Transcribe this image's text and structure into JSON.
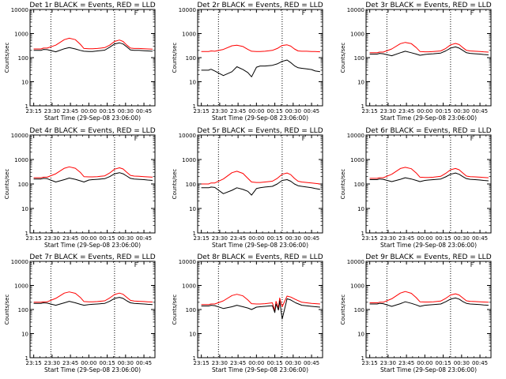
{
  "chart_data": [
    {
      "type": "line",
      "title": "Det 1r BLACK = Events, RED = LLD",
      "ylabel": "Counts/sec",
      "xlabel": "Start Time (29-Sep-08 23:06:00)",
      "ylim": [
        1,
        10000
      ],
      "yscale": "log",
      "x_ticks": [
        "23:15",
        "23:30",
        "23:45",
        "00:00",
        "00:15",
        "00:30",
        "00:45"
      ],
      "y_ticks": [
        "1",
        "10",
        "100",
        "1000",
        "10000"
      ],
      "flag": "F",
      "x_minutes": [
        0,
        6,
        7,
        8,
        11,
        18,
        25,
        29,
        34,
        38,
        41,
        45,
        48,
        52,
        58,
        62,
        66,
        70,
        73,
        76,
        79,
        82,
        86,
        90,
        93,
        97
      ],
      "vlines": [
        14,
        66
      ],
      "series": [
        {
          "name": "LLD",
          "color": "#ff0000",
          "values": [
            230,
            230,
            240,
            250,
            250,
            330,
            560,
            640,
            560,
            360,
            240,
            235,
            235,
            240,
            260,
            330,
            470,
            540,
            470,
            330,
            250,
            240,
            240,
            235,
            230,
            225
          ]
        },
        {
          "name": "Events",
          "color": "#000000",
          "values": [
            200,
            200,
            210,
            220,
            215,
            175,
            235,
            260,
            230,
            200,
            185,
            180,
            180,
            190,
            205,
            270,
            370,
            410,
            370,
            280,
            210,
            200,
            200,
            195,
            190,
            185
          ]
        }
      ]
    },
    {
      "type": "line",
      "title": "Det 2r BLACK = Events, RED = LLD",
      "ylabel": "Counts/sec",
      "xlabel": "Start Time (29-Sep-08 23:06:00)",
      "ylim": [
        1,
        10000
      ],
      "yscale": "log",
      "x_ticks": [
        "23:15",
        "23:30",
        "23:45",
        "00:00",
        "00:15",
        "00:30",
        "00:45"
      ],
      "y_ticks": [
        "1",
        "10",
        "100",
        "1000",
        "10000"
      ],
      "flag": "F",
      "x_minutes": [
        0,
        6,
        7,
        8,
        11,
        18,
        25,
        29,
        34,
        38,
        41,
        45,
        48,
        52,
        58,
        62,
        66,
        70,
        73,
        76,
        79,
        82,
        86,
        90,
        93,
        97
      ],
      "vlines": [
        14,
        66
      ],
      "series": [
        {
          "name": "LLD",
          "color": "#ff0000",
          "values": [
            180,
            180,
            185,
            190,
            185,
            220,
            310,
            330,
            290,
            220,
            185,
            180,
            180,
            185,
            200,
            240,
            320,
            340,
            300,
            230,
            190,
            185,
            185,
            180,
            180,
            175
          ]
        },
        {
          "name": "Events",
          "color": "#000000",
          "values": [
            30,
            30,
            32,
            33,
            28,
            18,
            26,
            42,
            32,
            24,
            16,
            40,
            45,
            45,
            48,
            55,
            70,
            80,
            62,
            46,
            38,
            36,
            34,
            32,
            28,
            26
          ]
        }
      ]
    },
    {
      "type": "line",
      "title": "Det 3r BLACK = Events, RED = LLD",
      "ylabel": "Counts/sec",
      "xlabel": "Start Time (29-Sep-08 23:06:00)",
      "ylim": [
        1,
        10000
      ],
      "yscale": "log",
      "x_ticks": [
        "23:15",
        "23:30",
        "23:45",
        "00:00",
        "00:15",
        "00:30",
        "00:45"
      ],
      "y_ticks": [
        "1",
        "10",
        "100",
        "1000",
        "10000"
      ],
      "flag": "F",
      "x_minutes": [
        0,
        6,
        7,
        8,
        11,
        18,
        25,
        29,
        34,
        38,
        41,
        45,
        48,
        52,
        58,
        62,
        66,
        70,
        73,
        76,
        79,
        82,
        86,
        90,
        93,
        97
      ],
      "vlines": [
        14,
        66
      ],
      "series": [
        {
          "name": "LLD",
          "color": "#ff0000",
          "values": [
            160,
            160,
            165,
            170,
            170,
            230,
            380,
            430,
            380,
            260,
            180,
            175,
            175,
            180,
            190,
            240,
            340,
            390,
            350,
            260,
            200,
            190,
            185,
            180,
            175,
            170
          ]
        },
        {
          "name": "Events",
          "color": "#000000",
          "values": [
            140,
            140,
            145,
            150,
            145,
            120,
            160,
            185,
            160,
            140,
            125,
            135,
            140,
            145,
            155,
            190,
            250,
            280,
            250,
            200,
            160,
            150,
            145,
            140,
            135,
            130
          ]
        }
      ]
    },
    {
      "type": "line",
      "title": "Det 4r BLACK = Events, RED = LLD",
      "ylabel": "Counts/sec",
      "xlabel": "Start Time (29-Sep-08 23:06:00)",
      "ylim": [
        1,
        10000
      ],
      "yscale": "log",
      "x_ticks": [
        "23:15",
        "23:30",
        "23:45",
        "00:00",
        "00:15",
        "00:30",
        "00:45"
      ],
      "y_ticks": [
        "1",
        "10",
        "100",
        "1000",
        "10000"
      ],
      "flag": "F",
      "x_minutes": [
        0,
        6,
        7,
        8,
        11,
        18,
        25,
        29,
        34,
        38,
        41,
        45,
        48,
        52,
        58,
        62,
        66,
        70,
        73,
        76,
        79,
        82,
        86,
        90,
        93,
        97
      ],
      "vlines": [
        14,
        66
      ],
      "series": [
        {
          "name": "LLD",
          "color": "#ff0000",
          "values": [
            180,
            180,
            185,
            190,
            190,
            260,
            440,
            500,
            440,
            300,
            200,
            195,
            195,
            200,
            215,
            280,
            400,
            460,
            410,
            300,
            225,
            210,
            205,
            200,
            195,
            190
          ]
        },
        {
          "name": "Events",
          "color": "#000000",
          "values": [
            160,
            160,
            165,
            170,
            165,
            120,
            150,
            175,
            155,
            135,
            120,
            145,
            150,
            155,
            165,
            200,
            260,
            290,
            260,
            210,
            170,
            160,
            155,
            150,
            145,
            140
          ]
        }
      ]
    },
    {
      "type": "line",
      "title": "Det 5r BLACK = Events, RED = LLD",
      "ylabel": "Counts/sec",
      "xlabel": "Start Time (29-Sep-08 23:06:00)",
      "ylim": [
        1,
        10000
      ],
      "yscale": "log",
      "x_ticks": [
        "23:15",
        "23:30",
        "23:45",
        "00:00",
        "00:15",
        "00:30",
        "00:45"
      ],
      "y_ticks": [
        "1",
        "10",
        "100",
        "1000",
        "10000"
      ],
      "flag": "F",
      "x_minutes": [
        0,
        6,
        7,
        8,
        11,
        18,
        25,
        29,
        34,
        38,
        41,
        45,
        48,
        52,
        58,
        62,
        66,
        70,
        73,
        76,
        79,
        82,
        86,
        90,
        93,
        97
      ],
      "vlines": [
        14,
        66
      ],
      "series": [
        {
          "name": "LLD",
          "color": "#ff0000",
          "values": [
            100,
            100,
            105,
            110,
            110,
            160,
            290,
            330,
            270,
            170,
            120,
            115,
            115,
            120,
            130,
            170,
            250,
            280,
            240,
            170,
            130,
            120,
            115,
            110,
            105,
            100
          ]
        },
        {
          "name": "Events",
          "color": "#000000",
          "values": [
            70,
            70,
            72,
            75,
            72,
            40,
            55,
            70,
            60,
            50,
            35,
            65,
            70,
            75,
            80,
            100,
            140,
            150,
            130,
            100,
            85,
            80,
            75,
            70,
            65,
            60
          ]
        }
      ]
    },
    {
      "type": "line",
      "title": "Det 6r BLACK = Events, RED = LLD",
      "ylabel": "Counts/sec",
      "xlabel": "Start Time (29-Sep-08 23:06:00)",
      "ylim": [
        1,
        10000
      ],
      "yscale": "log",
      "x_ticks": [
        "23:15",
        "23:30",
        "23:45",
        "00:00",
        "00:15",
        "00:30",
        "00:45"
      ],
      "y_ticks": [
        "1",
        "10",
        "100",
        "1000",
        "10000"
      ],
      "flag": "F",
      "x_minutes": [
        0,
        6,
        7,
        8,
        11,
        18,
        25,
        29,
        34,
        38,
        41,
        45,
        48,
        52,
        58,
        62,
        66,
        70,
        73,
        76,
        79,
        82,
        86,
        90,
        93,
        97
      ],
      "vlines": [
        14,
        66
      ],
      "series": [
        {
          "name": "LLD",
          "color": "#ff0000",
          "values": [
            170,
            170,
            175,
            180,
            180,
            250,
            430,
            480,
            420,
            280,
            190,
            185,
            185,
            190,
            205,
            270,
            380,
            430,
            380,
            280,
            210,
            200,
            195,
            190,
            185,
            180
          ]
        },
        {
          "name": "Events",
          "color": "#000000",
          "values": [
            150,
            150,
            155,
            160,
            155,
            125,
            155,
            180,
            160,
            140,
            125,
            140,
            145,
            150,
            160,
            195,
            250,
            280,
            250,
            200,
            165,
            155,
            150,
            145,
            140,
            135
          ]
        }
      ]
    },
    {
      "type": "line",
      "title": "Det 7r BLACK = Events, RED = LLD",
      "ylabel": "Counts/sec",
      "xlabel": "Start Time (29-Sep-08 23:06:00)",
      "ylim": [
        1,
        10000
      ],
      "yscale": "log",
      "x_ticks": [
        "23:15",
        "23:30",
        "23:45",
        "00:00",
        "00:15",
        "00:30",
        "00:45"
      ],
      "y_ticks": [
        "1",
        "10",
        "100",
        "1000",
        "10000"
      ],
      "flag": "F",
      "x_minutes": [
        0,
        6,
        7,
        8,
        11,
        18,
        25,
        29,
        34,
        38,
        41,
        45,
        48,
        52,
        58,
        62,
        66,
        70,
        73,
        76,
        79,
        82,
        86,
        90,
        93,
        97
      ],
      "vlines": [
        14,
        66
      ],
      "series": [
        {
          "name": "LLD",
          "color": "#ff0000",
          "values": [
            200,
            200,
            205,
            210,
            210,
            290,
            480,
            540,
            470,
            320,
            215,
            210,
            210,
            215,
            230,
            300,
            420,
            480,
            430,
            320,
            240,
            225,
            220,
            215,
            210,
            205
          ]
        },
        {
          "name": "Events",
          "color": "#000000",
          "values": [
            180,
            180,
            185,
            190,
            185,
            150,
            190,
            220,
            190,
            165,
            150,
            160,
            165,
            170,
            180,
            220,
            290,
            320,
            290,
            230,
            190,
            180,
            175,
            170,
            165,
            160
          ]
        }
      ]
    },
    {
      "type": "line",
      "title": "Det 8r BLACK = Events, RED = LLD",
      "ylabel": "Counts/sec",
      "xlabel": "Start Time (29-Sep-08 23:06:00)",
      "ylim": [
        1,
        10000
      ],
      "yscale": "log",
      "x_ticks": [
        "23:15",
        "23:30",
        "23:45",
        "00:00",
        "00:15",
        "00:30",
        "00:45"
      ],
      "y_ticks": [
        "1",
        "10",
        "100",
        "1000",
        "10000"
      ],
      "flag": "F",
      "x_minutes": [
        0,
        6,
        7,
        8,
        11,
        18,
        25,
        29,
        34,
        38,
        41,
        45,
        48,
        52,
        58,
        60,
        61,
        63,
        64,
        66,
        70,
        73,
        77,
        82,
        90,
        97
      ],
      "vlines": [
        14,
        66
      ],
      "series": [
        {
          "name": "LLD",
          "color": "#ff0000",
          "values": [
            160,
            160,
            165,
            170,
            170,
            230,
            380,
            430,
            370,
            250,
            175,
            170,
            170,
            175,
            190,
            90,
            220,
            120,
            300,
            130,
            360,
            330,
            260,
            200,
            180,
            170
          ]
        },
        {
          "name": "Events",
          "color": "#000000",
          "values": [
            140,
            140,
            145,
            150,
            145,
            110,
            130,
            150,
            130,
            115,
            100,
            125,
            130,
            135,
            145,
            75,
            170,
            95,
            230,
            40,
            280,
            250,
            190,
            150,
            135,
            125
          ]
        }
      ]
    },
    {
      "type": "line",
      "title": "Det 9r BLACK = Events, RED = LLD",
      "ylabel": "Counts/sec",
      "xlabel": "Start Time (29-Sep-08 23:06:00)",
      "ylim": [
        1,
        10000
      ],
      "yscale": "log",
      "x_ticks": [
        "23:15",
        "23:30",
        "23:45",
        "00:00",
        "00:15",
        "00:30",
        "00:45"
      ],
      "y_ticks": [
        "1",
        "10",
        "100",
        "1000",
        "10000"
      ],
      "flag": "F",
      "x_minutes": [
        0,
        6,
        7,
        8,
        11,
        18,
        25,
        29,
        34,
        38,
        41,
        45,
        48,
        52,
        58,
        62,
        66,
        70,
        73,
        76,
        79,
        82,
        86,
        90,
        93,
        97
      ],
      "vlines": [
        14,
        66
      ],
      "series": [
        {
          "name": "LLD",
          "color": "#ff0000",
          "values": [
            190,
            190,
            195,
            200,
            200,
            280,
            480,
            560,
            470,
            310,
            210,
            205,
            205,
            210,
            225,
            290,
            400,
            450,
            400,
            300,
            230,
            220,
            215,
            210,
            205,
            200
          ]
        },
        {
          "name": "Events",
          "color": "#000000",
          "values": [
            170,
            170,
            175,
            180,
            175,
            135,
            175,
            210,
            180,
            155,
            135,
            150,
            155,
            160,
            170,
            210,
            270,
            300,
            270,
            215,
            180,
            170,
            165,
            160,
            155,
            150
          ]
        }
      ]
    }
  ]
}
